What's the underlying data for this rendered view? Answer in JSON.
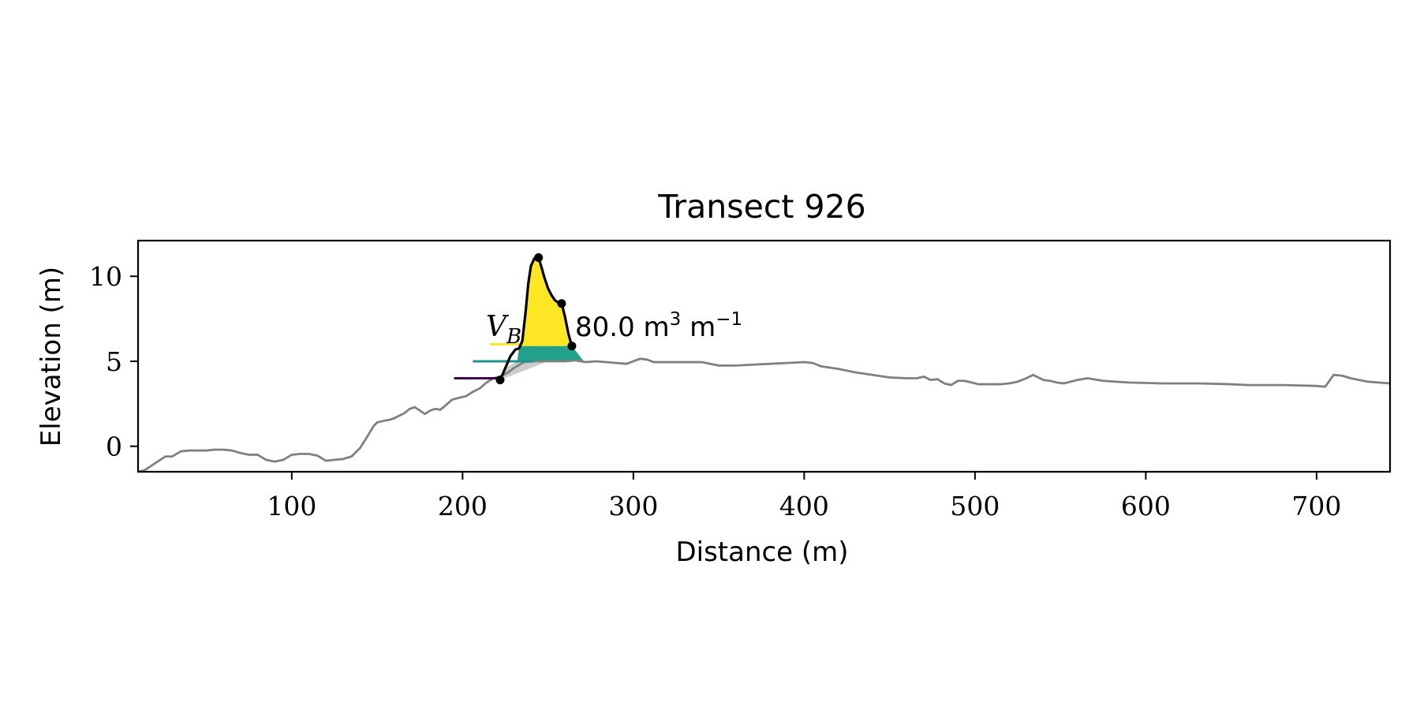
{
  "chart_data": {
    "type": "line",
    "title": "Transect 926",
    "xlabel": "Distance (m)",
    "ylabel": "Elevation (m)",
    "xlim": [
      10,
      743
    ],
    "ylim": [
      -1.5,
      12.1
    ],
    "xticks": [
      100,
      200,
      300,
      400,
      500,
      600,
      700
    ],
    "yticks": [
      0,
      5,
      10
    ],
    "grid": false,
    "profile": {
      "color": "#808080",
      "x": [
        10,
        14,
        20,
        26,
        30,
        35,
        40,
        45,
        50,
        55,
        60,
        65,
        70,
        75,
        80,
        85,
        90,
        95,
        100,
        105,
        110,
        115,
        120,
        125,
        130,
        135,
        140,
        145,
        148,
        150,
        152,
        154,
        157,
        160,
        163,
        166,
        169,
        172,
        175,
        178,
        181,
        184,
        187,
        190,
        194,
        198,
        202,
        206,
        210,
        214,
        218,
        222,
        226,
        230,
        236,
        242,
        248,
        254,
        260,
        266,
        272,
        278,
        284,
        290,
        296,
        300,
        304,
        308,
        312,
        316,
        322,
        330,
        340,
        350,
        360,
        370,
        380,
        390,
        400,
        405,
        410,
        420,
        430,
        440,
        450,
        460,
        466,
        470,
        474,
        478,
        482,
        486,
        490,
        494,
        498,
        502,
        506,
        510,
        515,
        520,
        525,
        530,
        534,
        537,
        540,
        544,
        548,
        552,
        556,
        560,
        566,
        575,
        590,
        610,
        630,
        650,
        660,
        680,
        700,
        705,
        710,
        715,
        720,
        730,
        743
      ],
      "y": [
        -1.5,
        -1.4,
        -1.0,
        -0.6,
        -0.6,
        -0.3,
        -0.25,
        -0.25,
        -0.25,
        -0.2,
        -0.2,
        -0.25,
        -0.4,
        -0.5,
        -0.5,
        -0.8,
        -0.9,
        -0.8,
        -0.5,
        -0.45,
        -0.45,
        -0.55,
        -0.85,
        -0.8,
        -0.75,
        -0.6,
        -0.1,
        0.7,
        1.2,
        1.4,
        1.45,
        1.5,
        1.55,
        1.65,
        1.8,
        1.95,
        2.2,
        2.3,
        2.1,
        1.9,
        2.1,
        2.2,
        2.15,
        2.4,
        2.75,
        2.85,
        2.95,
        3.2,
        3.4,
        3.75,
        4.0,
        4.1,
        4.3,
        4.6,
        4.95,
        5.0,
        5.0,
        5.0,
        5.0,
        5.05,
        4.95,
        5.0,
        4.95,
        4.9,
        4.85,
        5.0,
        5.15,
        5.1,
        4.95,
        4.95,
        4.95,
        4.95,
        4.95,
        4.75,
        4.75,
        4.8,
        4.85,
        4.9,
        4.95,
        4.9,
        4.7,
        4.55,
        4.35,
        4.2,
        4.05,
        4.0,
        4.0,
        4.1,
        3.9,
        3.95,
        3.7,
        3.6,
        3.85,
        3.85,
        3.75,
        3.65,
        3.65,
        3.65,
        3.65,
        3.7,
        3.8,
        4.0,
        4.2,
        4.05,
        3.9,
        3.85,
        3.75,
        3.7,
        3.8,
        3.9,
        4.0,
        3.85,
        3.75,
        3.7,
        3.7,
        3.65,
        3.6,
        3.6,
        3.55,
        3.5,
        4.2,
        4.15,
        4.0,
        3.8,
        3.7
      ]
    },
    "dune": {
      "color": "#000000",
      "x": [
        222,
        225,
        228,
        231,
        233,
        235,
        237,
        238.5,
        240,
        242,
        244.5,
        246,
        248,
        250,
        252,
        254,
        256,
        258,
        260,
        262,
        264
      ],
      "y": [
        3.9,
        4.6,
        5.3,
        5.7,
        5.75,
        6.2,
        8.0,
        9.6,
        10.6,
        11.05,
        11.1,
        10.6,
        9.9,
        9.3,
        8.9,
        8.6,
        8.45,
        8.4,
        7.6,
        6.6,
        5.9
      ]
    },
    "key_points": {
      "x": [
        222,
        244.5,
        258,
        264
      ],
      "y": [
        3.9,
        11.1,
        8.4,
        5.9
      ]
    },
    "level_markers": [
      {
        "color": "#440154",
        "x": [
          195,
          222
        ],
        "y": 4.0
      },
      {
        "color": "#21918c",
        "x": [
          206,
          242
        ],
        "y": 5.0
      },
      {
        "color": "#fde725",
        "x": [
          216,
          234
        ],
        "y": 6.0
      }
    ],
    "fills": {
      "grey": "#cccccc",
      "teal": "#21a08a",
      "yellow": "#fde725",
      "base_level": 5.0,
      "crest_level": 5.9
    },
    "annotation": {
      "symbol": "V",
      "subscript": "B",
      "value_text": "80.0 m",
      "unit_exp": "3",
      "unit_tail": " m",
      "unit_tail_exp": "−1"
    }
  }
}
